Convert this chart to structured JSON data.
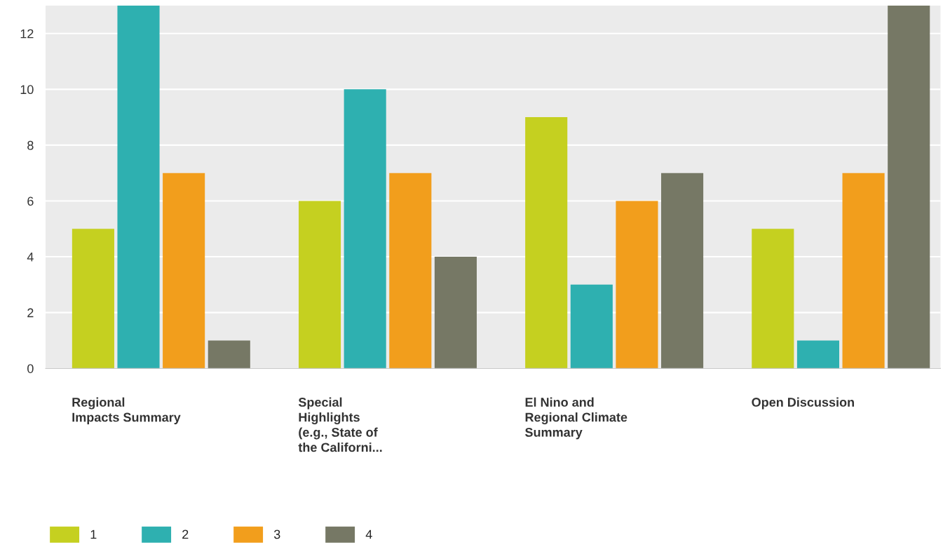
{
  "chart_data": {
    "type": "bar",
    "categories": [
      "Regional\nImpacts Summary",
      "Special\nHighlights\n(e.g., State of\nthe Californi...",
      "El Nino and\nRegional Climate\nSummary",
      "Open Discussion"
    ],
    "series": [
      {
        "name": "1",
        "color": "#c5d020",
        "values": [
          5,
          6,
          9,
          5
        ]
      },
      {
        "name": "2",
        "color": "#2eb0b0",
        "values": [
          13,
          10,
          3,
          1
        ]
      },
      {
        "name": "3",
        "color": "#f29e1c",
        "values": [
          7,
          7,
          6,
          7
        ]
      },
      {
        "name": "4",
        "color": "#767865",
        "values": [
          1,
          4,
          7,
          13
        ]
      }
    ],
    "ylim": [
      0,
      13
    ],
    "yticks": [
      0,
      2,
      4,
      6,
      8,
      10,
      12
    ],
    "grid": "y",
    "legend": "bottom left"
  }
}
